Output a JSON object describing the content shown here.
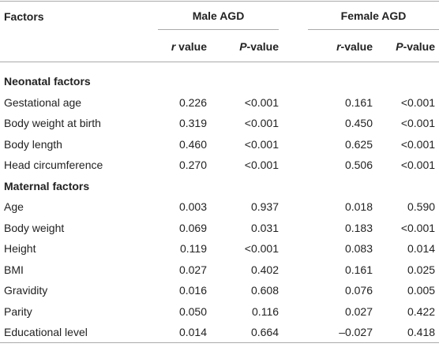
{
  "table": {
    "header": {
      "factors": "Factors",
      "groups": [
        "Male AGD",
        "Female AGD"
      ],
      "subheaders": [
        [
          "r",
          " value"
        ],
        [
          "P",
          "-value"
        ],
        [
          "r",
          "-value"
        ],
        [
          "P",
          "-value"
        ]
      ]
    },
    "sections": [
      {
        "title": "Neonatal factors",
        "rows": [
          [
            "Gestational age",
            "0.226",
            "<0.001",
            "0.161",
            "<0.001"
          ],
          [
            "Body weight at birth",
            "0.319",
            "<0.001",
            "0.450",
            "<0.001"
          ],
          [
            "Body length",
            "0.460",
            "<0.001",
            "0.625",
            "<0.001"
          ],
          [
            "Head circumference",
            "0.270",
            "<0.001",
            "0.506",
            "<0.001"
          ]
        ]
      },
      {
        "title": "Maternal factors",
        "rows": [
          [
            "Age",
            "0.003",
            "0.937",
            "0.018",
            "0.590"
          ],
          [
            "Body weight",
            "0.069",
            "0.031",
            "0.183",
            "<0.001"
          ],
          [
            "Height",
            "0.119",
            "<0.001",
            "0.083",
            "0.014"
          ],
          [
            "BMI",
            "0.027",
            "0.402",
            "0.161",
            "0.025"
          ],
          [
            "Gravidity",
            "0.016",
            "0.608",
            "0.076",
            "0.005"
          ],
          [
            "Parity",
            "0.050",
            "0.116",
            "0.027",
            "0.422"
          ],
          [
            "Educational level",
            "0.014",
            "0.664",
            "–0.027",
            "0.418"
          ]
        ]
      }
    ]
  }
}
